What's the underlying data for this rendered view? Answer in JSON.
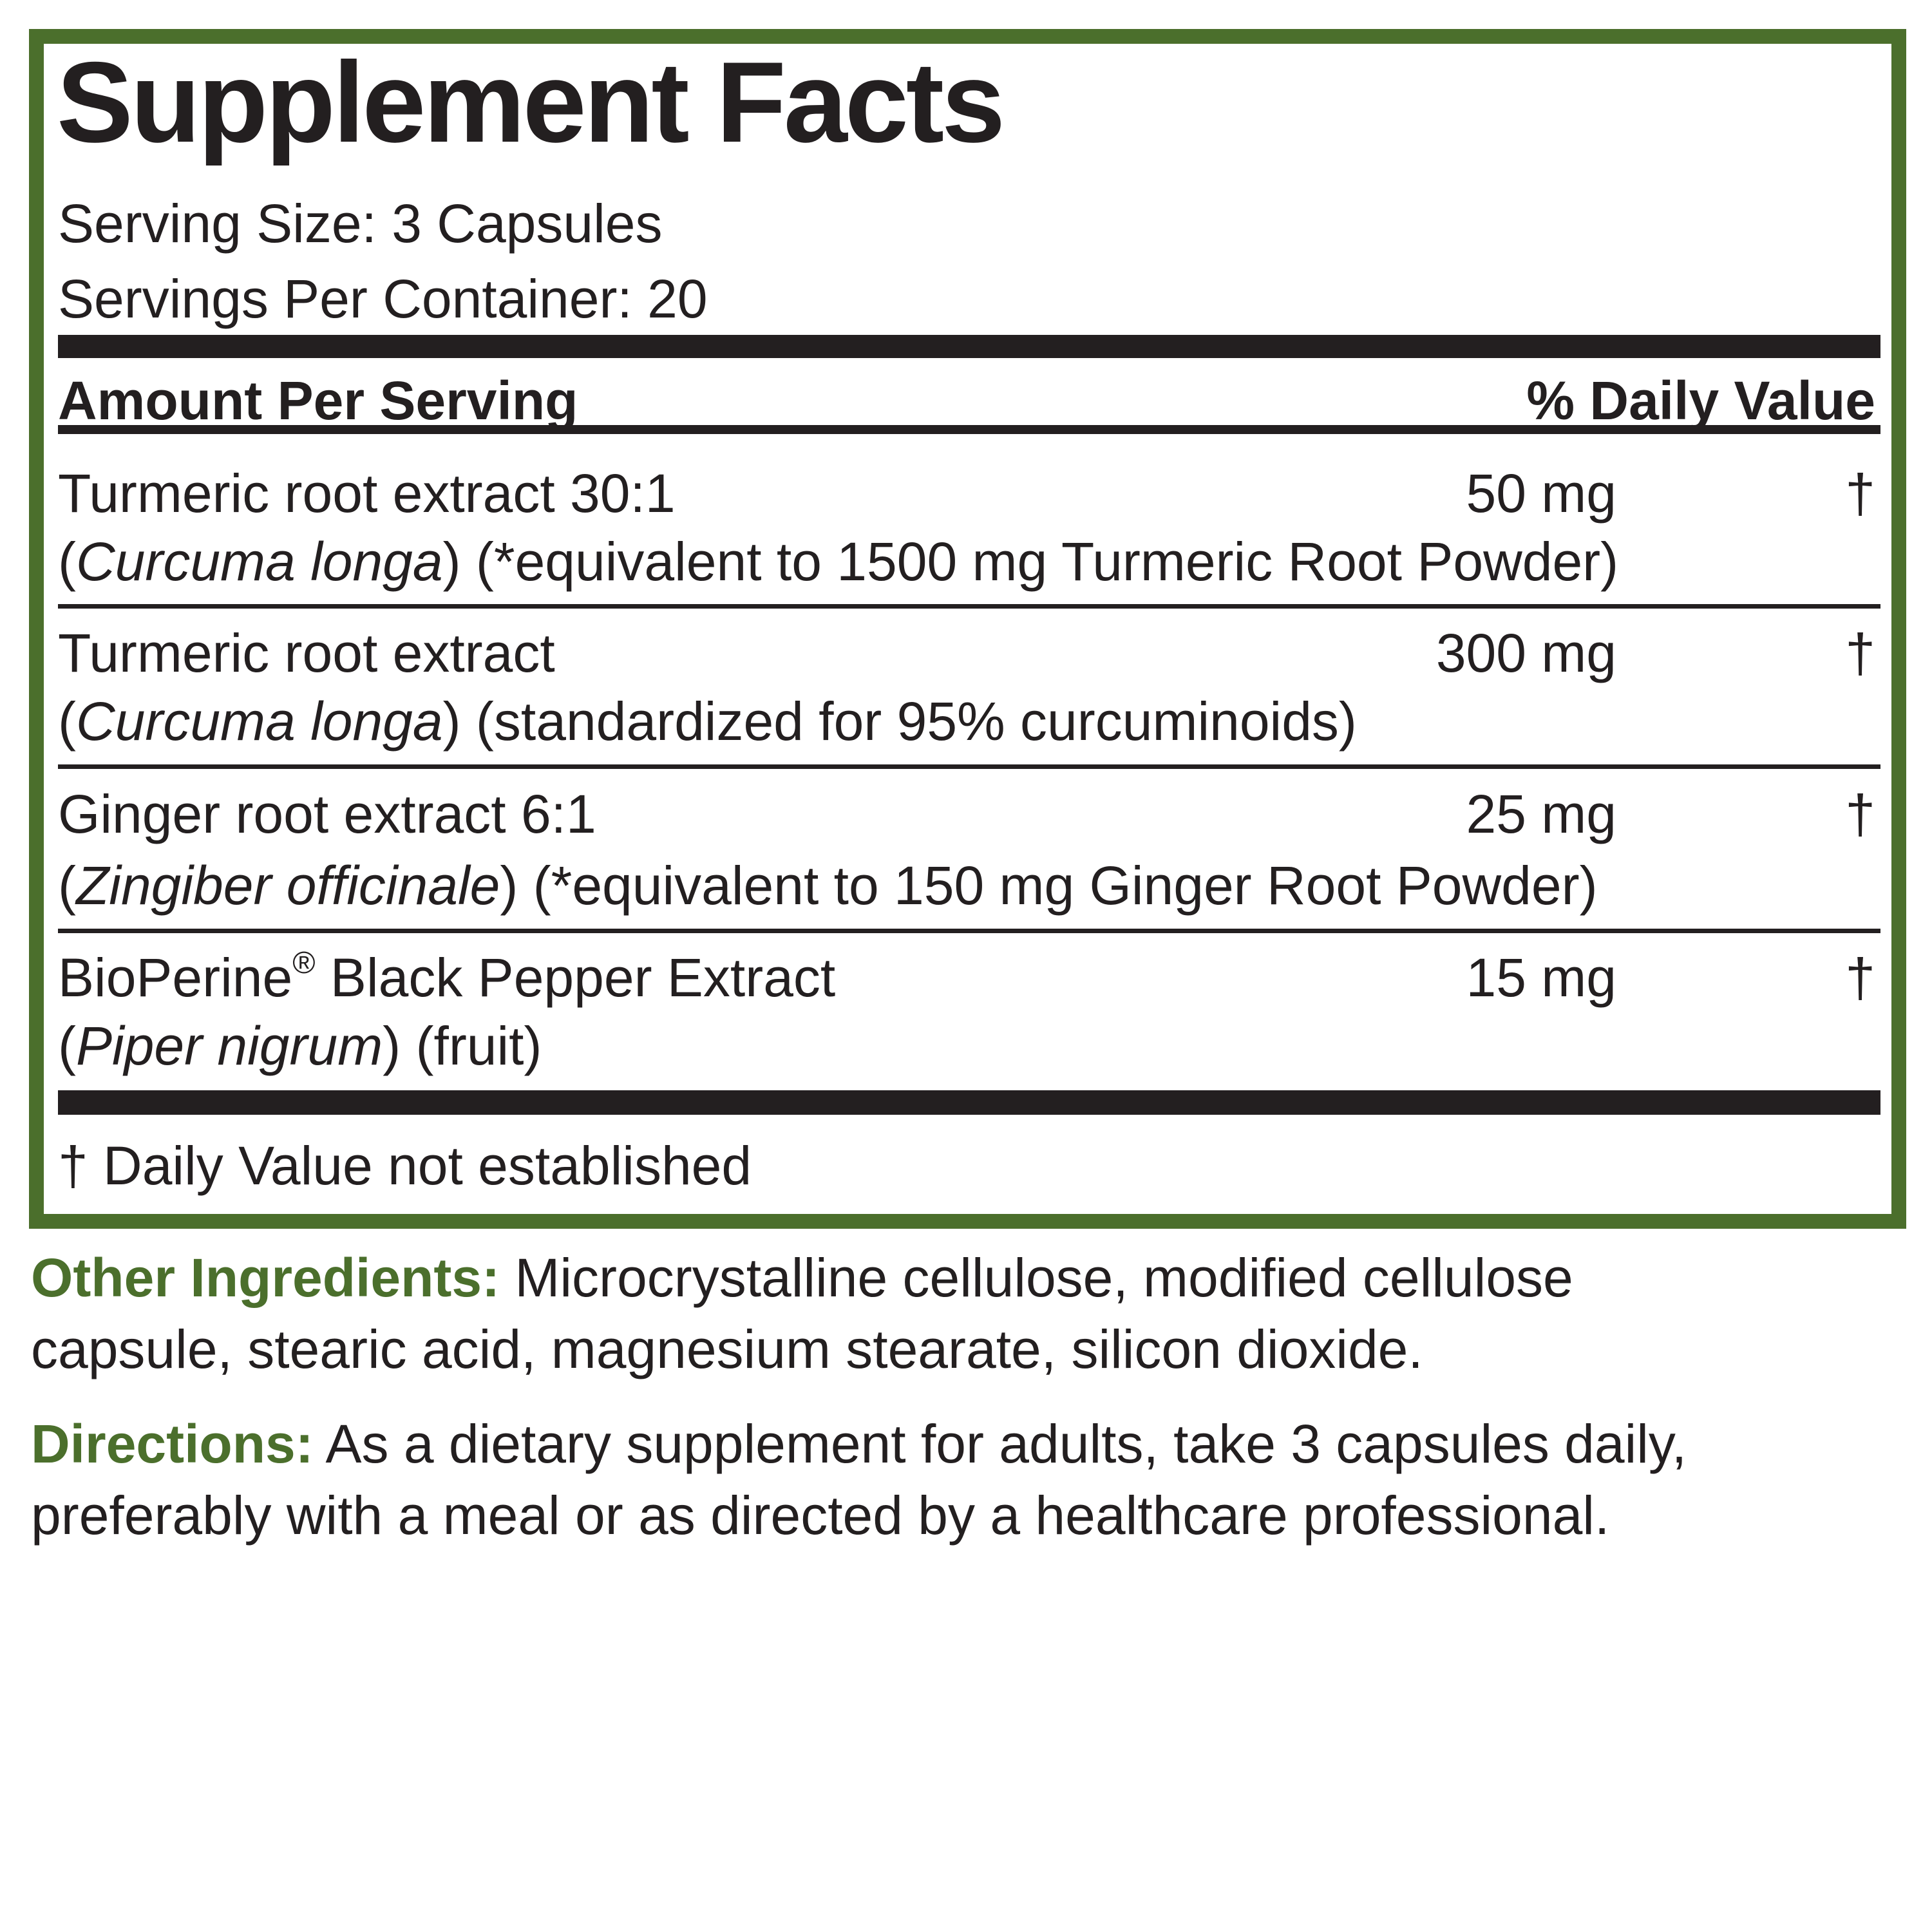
{
  "panel": {
    "title": "Supplement Facts",
    "serving_size": "Serving Size: 3 Capsules",
    "servings_per_container": "Servings Per Container: 20",
    "header_left": "Amount Per Serving",
    "header_right": "% Daily Value",
    "rows": [
      {
        "name": "Turmeric root extract 30:1",
        "amount": "50 mg",
        "dv": "†",
        "latin": "Curcuma longa",
        "note": " (*equivalent to 1500 mg Turmeric Root Powder)"
      },
      {
        "name": "Turmeric root extract",
        "amount": "300 mg",
        "dv": "†",
        "latin": "Curcuma longa",
        "note": " (standardized for 95% curcuminoids)"
      },
      {
        "name": "Ginger root extract 6:1",
        "amount": "25 mg",
        "dv": "†",
        "latin": "Zingiber officinale",
        "note": " (*equivalent to 150 mg Ginger Root Powder)"
      },
      {
        "name": "BioPerine",
        "name_mark": "®",
        "name_rest": " Black Pepper Extract",
        "amount": "15 mg",
        "dv": "†",
        "latin": "Piper nigrum",
        "note": " (fruit)"
      }
    ],
    "footnote": "† Daily Value not established"
  },
  "other_ingredients": {
    "label": "Other Ingredients:",
    "line1": " Microcrystalline cellulose, modified cellulose",
    "line2": "capsule, stearic acid, magnesium stearate, silicon dioxide."
  },
  "directions": {
    "label": "Directions:",
    "line1": " As a dietary supplement for adults, take 3 capsules daily,",
    "line2": "preferably with a meal or as directed by a healthcare professional."
  },
  "colors": {
    "border": "#4b6f2c",
    "text": "#231f20",
    "label_green": "#4b6f2c"
  }
}
